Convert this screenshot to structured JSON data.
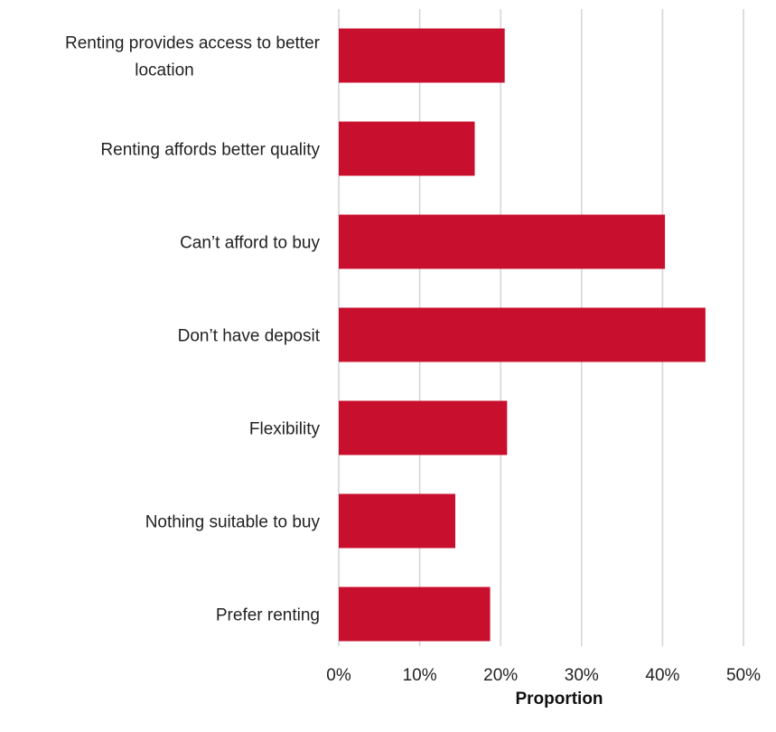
{
  "chart_data": {
    "type": "bar",
    "orientation": "horizontal",
    "categories": [
      [
        "Renting provides access to better",
        "location"
      ],
      [
        "Renting affords better quality"
      ],
      [
        "Can’t afford to buy"
      ],
      [
        "Don’t have deposit"
      ],
      [
        "Flexibility"
      ],
      [
        "Nothing suitable to buy"
      ],
      [
        "Prefer renting"
      ]
    ],
    "values": [
      20.5,
      16.8,
      40.3,
      45.3,
      20.8,
      14.4,
      18.7
    ],
    "xlabel": "Proportion",
    "ylabel": "",
    "xlim": [
      0,
      50
    ],
    "xticks": [
      "0%",
      "10%",
      "20%",
      "30%",
      "40%",
      "50%"
    ],
    "grid": true,
    "bar_color": "#c8102e"
  }
}
